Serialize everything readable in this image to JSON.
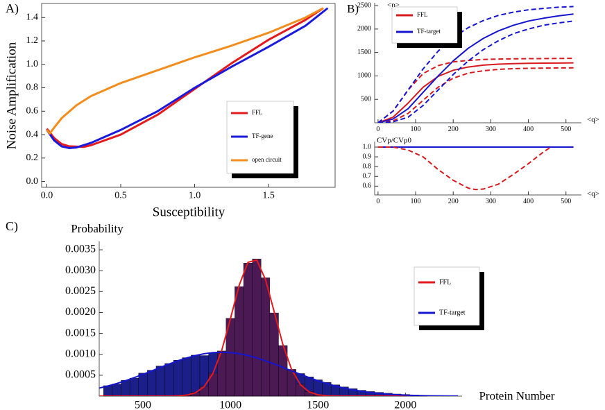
{
  "chart_data": [
    {
      "type": "line",
      "label": "A)",
      "x_label": "Susceptibility",
      "y_label": "Noise Amplification",
      "xlim": [
        -0.035,
        1.95
      ],
      "ylim": [
        -0.05,
        1.52
      ],
      "xticks": [
        {
          "value": 0,
          "label": "0.0"
        },
        0.5,
        {
          "value": 1,
          "label": "1.0"
        },
        1.5
      ],
      "yticks": [
        {
          "value": 0,
          "label": "0.0"
        },
        0.2,
        0.4,
        0.6,
        0.8,
        {
          "value": 1,
          "label": "1.0"
        },
        1.2,
        1.4
      ],
      "series": [
        {
          "name": "FFL",
          "color": "#e41a1c",
          "x": [
            0,
            0.05,
            0.1,
            0.15,
            0.25,
            0.3,
            0.5,
            0.75,
            1.0,
            1.25,
            1.5,
            1.75,
            1.87
          ],
          "values": [
            0.45,
            0.37,
            0.32,
            0.3,
            0.295,
            0.31,
            0.4,
            0.57,
            0.79,
            1.01,
            1.21,
            1.38,
            1.48
          ]
        },
        {
          "name": "TF-gene",
          "color": "#1a1adf",
          "x": [
            0,
            0.05,
            0.1,
            0.15,
            0.2,
            0.3,
            0.5,
            0.75,
            1.0,
            1.25,
            1.5,
            1.75,
            1.9
          ],
          "values": [
            0.44,
            0.35,
            0.3,
            0.285,
            0.29,
            0.33,
            0.44,
            0.6,
            0.8,
            0.98,
            1.15,
            1.33,
            1.48
          ]
        },
        {
          "name": "open circuit",
          "color": "#f28c1c",
          "x": [
            0,
            0.02,
            0.05,
            0.1,
            0.2,
            0.3,
            0.5,
            0.75,
            1.0,
            1.25,
            1.5,
            1.75,
            1.87
          ],
          "values": [
            0.44,
            0.41,
            0.46,
            0.54,
            0.65,
            0.73,
            0.84,
            0.95,
            1.06,
            1.16,
            1.27,
            1.4,
            1.48
          ]
        }
      ]
    },
    {
      "type": "line",
      "label": "B)",
      "x_label": "<q>",
      "y_label": "<p>",
      "xlim": [
        -9,
        530
      ],
      "ylim": [
        0,
        2560
      ],
      "xticks": [
        0,
        100,
        200,
        300,
        400,
        500
      ],
      "yticks": [
        500,
        1000,
        1500,
        2000,
        2500
      ],
      "x": [
        0,
        40,
        80,
        120,
        160,
        200,
        240,
        280,
        320,
        360,
        400,
        440,
        480,
        520
      ],
      "series": [
        {
          "name": "FFL",
          "color": "#d7191c",
          "values": [
            0,
            120,
            420,
            760,
            990,
            1120,
            1190,
            1230,
            1250,
            1262,
            1268,
            1272,
            1275,
            1278
          ]
        },
        {
          "name": "TF-target",
          "color": "#1515d0",
          "values": [
            0,
            80,
            300,
            650,
            1000,
            1320,
            1590,
            1800,
            1960,
            2080,
            2170,
            2230,
            2280,
            2320
          ]
        },
        {
          "color": "#d7191c",
          "dash": true,
          "values": [
            0,
            250,
            700,
            1050,
            1220,
            1300,
            1330,
            1350,
            1360,
            1365,
            1368,
            1370,
            1372,
            1375
          ]
        },
        {
          "color": "#d7191c",
          "dash": true,
          "values": [
            0,
            40,
            200,
            480,
            760,
            950,
            1060,
            1110,
            1140,
            1155,
            1162,
            1166,
            1170,
            1172
          ]
        },
        {
          "color": "#1515d0",
          "dash": true,
          "values": [
            0,
            250,
            700,
            1150,
            1530,
            1820,
            2030,
            2180,
            2290,
            2360,
            2410,
            2440,
            2465,
            2480
          ]
        },
        {
          "color": "#1515d0",
          "dash": true,
          "values": [
            0,
            20,
            120,
            370,
            700,
            1030,
            1320,
            1560,
            1750,
            1900,
            2000,
            2080,
            2130,
            2170
          ]
        }
      ]
    },
    {
      "type": "line",
      "x_label": "<q>",
      "y_label": "CVp/CVp0",
      "xlim": [
        -9,
        530
      ],
      "ylim": [
        0.51,
        1.057
      ],
      "xticks": [
        0,
        100,
        200,
        300,
        400,
        500
      ],
      "yticks": [
        0.6,
        0.7,
        0.8,
        0.9,
        {
          "value": 1,
          "label": "1.0"
        }
      ],
      "series": [
        {
          "color": "#1515d0",
          "x": [
            0,
            520
          ],
          "values": [
            1,
            1
          ]
        },
        {
          "color": "#d7191c",
          "dash": true,
          "x": [
            0,
            40,
            80,
            120,
            160,
            200,
            240,
            260,
            280,
            320,
            360,
            400,
            440,
            460
          ],
          "values": [
            1,
            1,
            0.97,
            0.9,
            0.77,
            0.66,
            0.58,
            0.565,
            0.57,
            0.62,
            0.72,
            0.83,
            0.95,
            1
          ]
        }
      ]
    },
    {
      "type": "histogram",
      "label": "C)",
      "x_label": "Protein Number",
      "y_label": "Probability",
      "xlim": [
        250,
        2300
      ],
      "ylim": [
        0,
        0.0037
      ],
      "xticks": [
        500,
        1000,
        1500,
        2000
      ],
      "yticks": [
        0.0005,
        {
          "value": 0.001,
          "label": "0.0010"
        },
        0.0015,
        {
          "value": 0.002,
          "label": "0.0020"
        },
        0.0025,
        {
          "value": 0.003,
          "label": "0.0030"
        },
        0.0035
      ],
      "bins": [
        275,
        325,
        375,
        425,
        475,
        525,
        575,
        625,
        675,
        725,
        775,
        825,
        875,
        925,
        975,
        1025,
        1075,
        1125,
        1175,
        1225,
        1275,
        1325,
        1375,
        1425,
        1475,
        1525,
        1575,
        1625,
        1675,
        1725,
        1775,
        1825,
        1875,
        1925,
        1975,
        2025,
        2075,
        2125
      ],
      "histograms": [
        {
          "color": "#1c1f8a",
          "values": [
            0.00025,
            0.00029,
            0.00038,
            0.00043,
            0.00055,
            0.00062,
            0.00072,
            0.00078,
            0.00086,
            0.00092,
            0.00098,
            0.00097,
            0.00104,
            0.00103,
            0.00099,
            0.00097,
            0.00095,
            0.00088,
            0.00083,
            0.00076,
            0.00066,
            0.0006,
            0.00054,
            0.00046,
            0.00039,
            0.00033,
            0.00027,
            0.00022,
            0.00018,
            0.00014,
            0.00011,
            9e-05,
            7e-05,
            5e-05,
            4e-05,
            3e-05,
            2e-05
          ]
        },
        {
          "color": "#4b1a55",
          "values": [
            0,
            0,
            0,
            0,
            0,
            0,
            0,
            0,
            0,
            3e-05,
            9e-05,
            0.00024,
            0.00055,
            0.00108,
            0.00186,
            0.00262,
            0.00318,
            0.00328,
            0.00283,
            0.00199,
            0.00121,
            0.00064,
            0.00029,
            0.00011,
            3e-05,
            0,
            0,
            0,
            0,
            0,
            0,
            0,
            0,
            0,
            0,
            0,
            0
          ]
        }
      ],
      "x": [
        250,
        300,
        350,
        400,
        450,
        500,
        550,
        600,
        650,
        700,
        750,
        800,
        850,
        900,
        950,
        1000,
        1050,
        1100,
        1150,
        1200,
        1250,
        1300,
        1350,
        1400,
        1450,
        1500,
        1550,
        1600,
        1650,
        1700,
        1750,
        1800,
        1850,
        1900,
        1950,
        2000,
        2050,
        2100,
        2150,
        2200,
        2250,
        2300
      ],
      "series": [
        {
          "name": "FFL",
          "color": "#e41a1c",
          "values": [
            0,
            0,
            0,
            0,
            0,
            0,
            0,
            0,
            1e-06,
            6e-06,
            2.4e-05,
            8e-05,
            0.000227,
            0.000542,
            0.001091,
            0.001853,
            0.002652,
            0.0032,
            0.003255,
            0.002792,
            0.002018,
            0.00123,
            0.000632,
            0.000274,
            0.0001,
            3.1e-05,
            8e-06,
            2e-06,
            0,
            0,
            0,
            0,
            0,
            0,
            0,
            0,
            0,
            0,
            0,
            0,
            0,
            0
          ]
        },
        {
          "name": "TF-target",
          "color": "#1515d0",
          "values": [
            0.000192,
            0.000243,
            0.000302,
            0.000368,
            0.000442,
            0.000521,
            0.000603,
            0.000687,
            0.000769,
            0.000846,
            0.000914,
            0.000971,
            0.001014,
            0.001041,
            0.00105,
            0.001041,
            0.001014,
            0.000971,
            0.000914,
            0.000846,
            0.000769,
            0.000687,
            0.000603,
            0.000521,
            0.000442,
            0.000368,
            0.000302,
            0.000243,
            0.000192,
            0.00015,
            0.000115,
            8.6e-05,
            6.4e-05,
            4.6e-05,
            3.3e-05,
            2.3e-05,
            1.6e-05,
            1.1e-05,
            7e-06,
            5e-06,
            3e-06,
            2e-06
          ]
        }
      ]
    }
  ]
}
